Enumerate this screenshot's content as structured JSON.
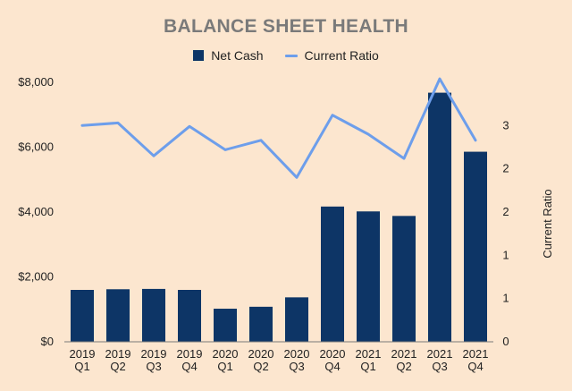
{
  "chart_data": {
    "type": "bar+line",
    "title": "BALANCE SHEET HEALTH",
    "categories": [
      [
        "2019",
        "Q1"
      ],
      [
        "2019",
        "Q2"
      ],
      [
        "2019",
        "Q3"
      ],
      [
        "2019",
        "Q4"
      ],
      [
        "2020",
        "Q1"
      ],
      [
        "2020",
        "Q2"
      ],
      [
        "2020",
        "Q3"
      ],
      [
        "2020",
        "Q4"
      ],
      [
        "2021",
        "Q1"
      ],
      [
        "2021",
        "Q2"
      ],
      [
        "2021",
        "Q3"
      ],
      [
        "2021",
        "Q4"
      ]
    ],
    "series": [
      {
        "name": "Net Cash",
        "type": "bar",
        "axis": "left",
        "color": "#0d3566",
        "values": [
          1600,
          1620,
          1630,
          1600,
          1020,
          1080,
          1370,
          4170,
          4020,
          3880,
          7680,
          5860
        ]
      },
      {
        "name": "Current Ratio",
        "type": "line",
        "axis": "right",
        "color": "#6d9eeb",
        "values": [
          2.5,
          2.53,
          2.15,
          2.49,
          2.22,
          2.33,
          1.9,
          2.62,
          2.4,
          2.12,
          3.04,
          2.33
        ]
      }
    ],
    "y_left": {
      "label": "",
      "ticks": [
        "$0",
        "$2,000",
        "$4,000",
        "$6,000",
        "$8,000"
      ],
      "tick_values": [
        0,
        2000,
        4000,
        6000,
        8000
      ],
      "range": [
        0,
        8000
      ]
    },
    "y_right": {
      "label": "Current Ratio",
      "ticks": [
        "0",
        "1",
        "1",
        "2",
        "2",
        "3"
      ],
      "tick_values": [
        0,
        0.5,
        1,
        1.5,
        2,
        2.5
      ],
      "range": [
        0,
        3
      ]
    },
    "grid": false,
    "legend_position": "top-center"
  }
}
